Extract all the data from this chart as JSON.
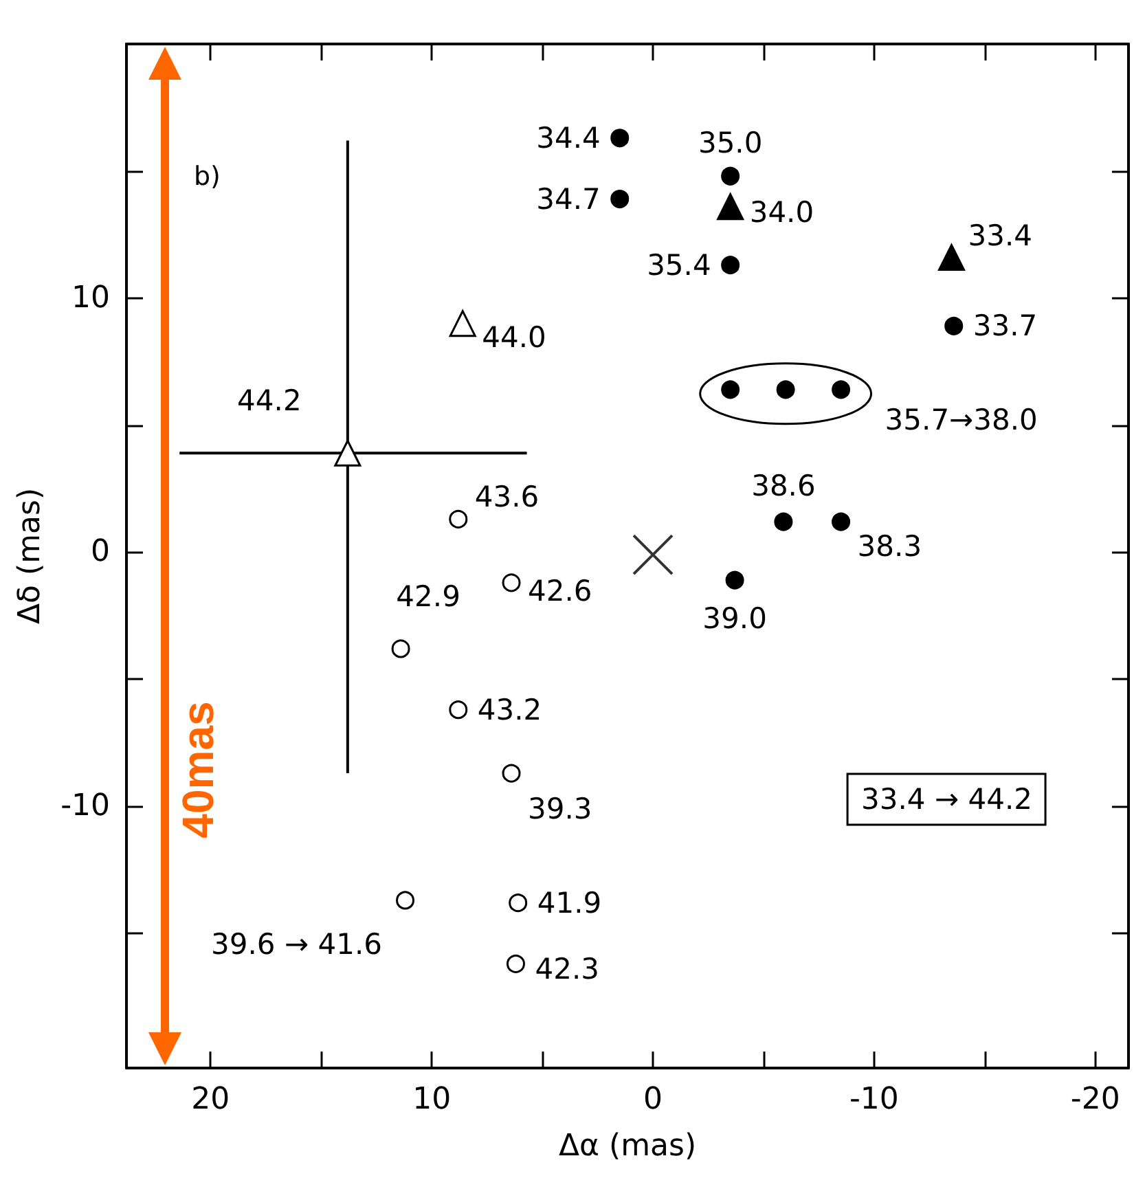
{
  "chart_data": {
    "type": "scatter",
    "xlabel": "Δα (mas)",
    "ylabel": "Δδ (mas)",
    "xlim": [
      23.8,
      -21.5
    ],
    "xticks": [
      20,
      {
        "value": 15,
        "label": null
      },
      10,
      {
        "value": 5,
        "label": null
      },
      0,
      {
        "value": -5,
        "label": null
      },
      -10,
      {
        "value": -15,
        "label": null
      },
      -20
    ],
    "ylim": [
      -20.3,
      20
    ],
    "yticks": [
      {
        "value": -15,
        "label": null
      },
      -10,
      {
        "value": -5,
        "label": null
      },
      0,
      {
        "value": 5,
        "label": null
      },
      10,
      {
        "value": 15,
        "label": null
      }
    ],
    "series": [
      {
        "marker": "circle",
        "color": "#000000",
        "x": [
          1.5,
          -3.5,
          1.5,
          -3.5,
          -13.6,
          -3.5,
          -6.0,
          -8.5,
          -5.9,
          -8.5,
          -3.7
        ],
        "values": [
          16.3,
          14.8,
          13.9,
          11.3,
          8.9,
          6.4,
          6.4,
          6.4,
          1.2,
          1.2,
          -1.1
        ]
      },
      {
        "marker": "triangle",
        "color": "#000000",
        "x": [
          -3.5,
          -13.5
        ],
        "values": [
          13.6,
          11.6
        ]
      },
      {
        "marker": "triangle",
        "color": "#ffffff",
        "x": [
          8.6,
          13.8
        ],
        "values": [
          9.0,
          3.9
        ],
        "errors": [
          null,
          [
            -8.7,
            16.2
          ]
        ],
        "xerrors": [
          null,
          [
            5.7,
            21.4
          ]
        ]
      },
      {
        "marker": "circle",
        "color": "#ffffff",
        "x": [
          8.8,
          6.4,
          11.4,
          8.8,
          6.4,
          11.2,
          6.1,
          6.2
        ],
        "values": [
          1.3,
          -1.2,
          -3.8,
          -6.2,
          -8.7,
          -13.7,
          -13.8,
          -16.2
        ]
      },
      {
        "marker": "cross",
        "color": "#000000",
        "x": [
          0
        ],
        "values": [
          -0.1
        ]
      }
    ],
    "annotations": [
      "b)",
      "33.4 → 44.2",
      "40mas",
      "35.7→38.0",
      {
        "text": "34.4",
        "x": 1.5,
        "y": 16.3
      },
      {
        "text": "35.0",
        "x": -3.5,
        "y": 14.8
      },
      {
        "text": "34.7",
        "x": 1.5,
        "y": 13.9
      },
      {
        "text": "35.4",
        "x": -3.5,
        "y": 11.3
      },
      {
        "text": "33.7",
        "x": -13.6,
        "y": 8.9
      },
      {
        "text": "38.6",
        "x": -5.9,
        "y": 1.2
      },
      {
        "text": "38.3",
        "x": -8.5,
        "y": 1.2
      },
      {
        "text": "39.0",
        "x": -3.7,
        "y": -1.1
      },
      {
        "text": "34.0",
        "x": -3.5,
        "y": 13.6
      },
      {
        "text": "33.4",
        "x": -13.5,
        "y": 11.6
      },
      {
        "text": "44.0",
        "x": 8.6,
        "y": 9.0
      },
      {
        "text": "44.2",
        "x": 13.8,
        "y": 3.9
      },
      {
        "text": "43.6",
        "x": 8.8,
        "y": 1.3
      },
      {
        "text": "42.6",
        "x": 6.4,
        "y": -1.2
      },
      {
        "text": "42.9",
        "x": 11.4,
        "y": -3.8
      },
      {
        "text": "43.2",
        "x": 8.8,
        "y": -6.2
      },
      {
        "text": "39.3",
        "x": 6.4,
        "y": -8.7
      },
      {
        "text": "39.6 → 41.6",
        "x": 11.2,
        "y": -13.7
      },
      {
        "text": "41.9",
        "x": 6.1,
        "y": -13.8
      },
      {
        "text": "42.3",
        "x": 6.2,
        "y": -16.2
      }
    ]
  }
}
